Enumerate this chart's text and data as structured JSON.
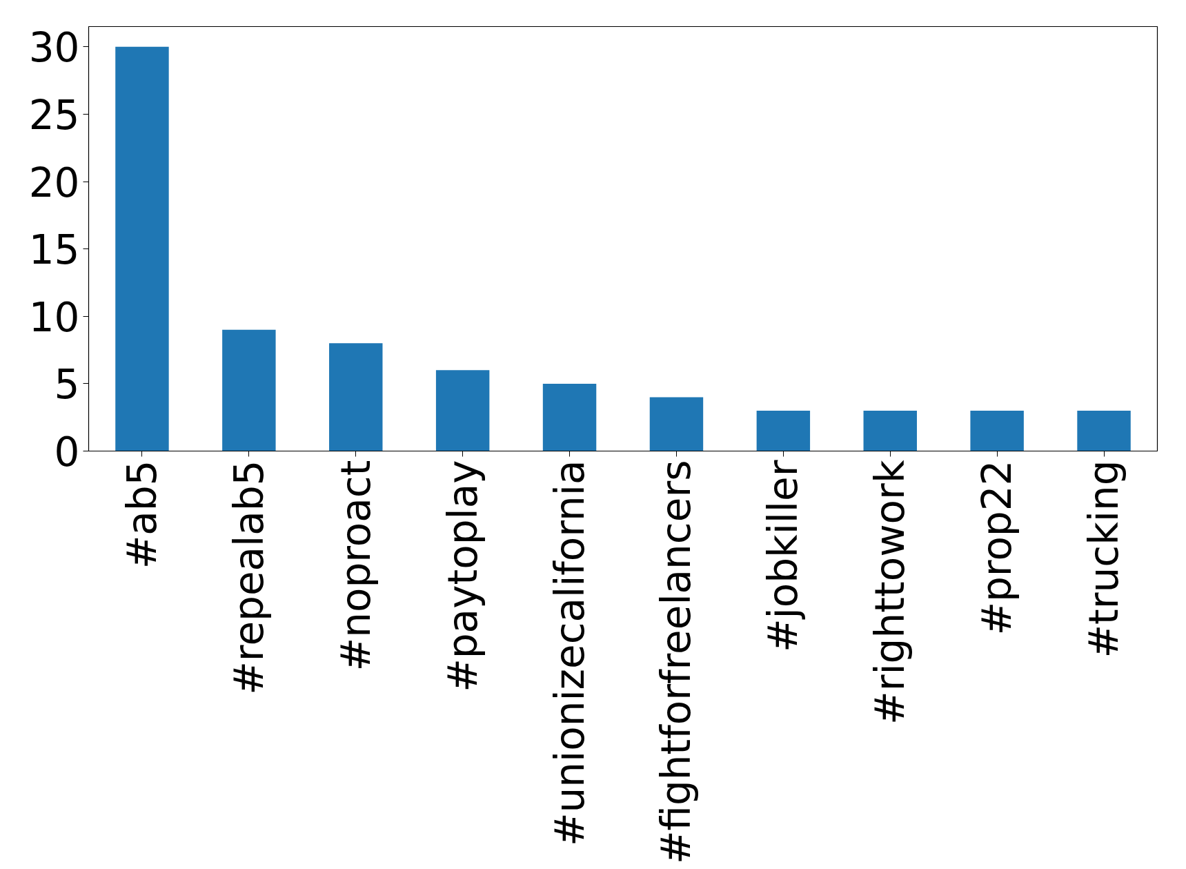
{
  "chart_data": {
    "type": "bar",
    "categories": [
      "#ab5",
      "#repealab5",
      "#noproact",
      "#paytoplay",
      "#unionizecalifornia",
      "#fightforfreelancers",
      "#jobkiller",
      "#righttowork",
      "#prop22",
      "#trucking"
    ],
    "values": [
      30,
      9,
      8,
      6,
      5,
      4,
      3,
      3,
      3,
      3
    ],
    "color": "#1f77b4",
    "ylim": [
      0,
      31.5
    ],
    "yticks": [
      0,
      5,
      10,
      15,
      20,
      25,
      30
    ],
    "grid": false
  }
}
